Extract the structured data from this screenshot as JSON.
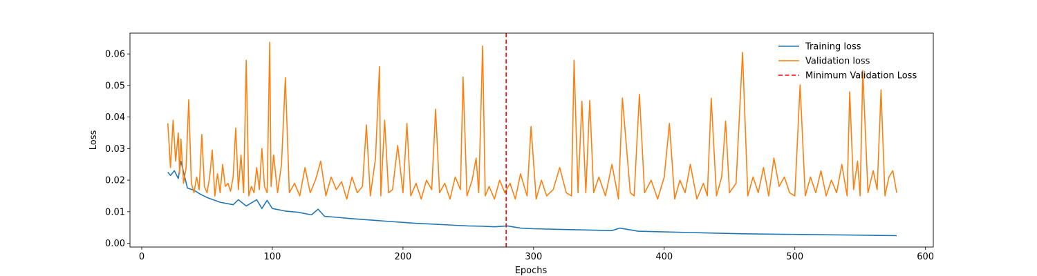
{
  "chart_data": {
    "type": "line",
    "title": "",
    "xlabel": "Epochs",
    "ylabel": "Loss",
    "xlim": [
      -9,
      606
    ],
    "ylim": [
      -0.0012,
      0.0666
    ],
    "xticks": [
      0,
      100,
      200,
      300,
      400,
      500,
      600
    ],
    "xtick_labels": [
      "0",
      "100",
      "200",
      "300",
      "400",
      "500",
      "600"
    ],
    "yticks": [
      0.0,
      0.01,
      0.02,
      0.03,
      0.04,
      0.05,
      0.06
    ],
    "ytick_labels": [
      "0.00",
      "0.01",
      "0.02",
      "0.03",
      "0.04",
      "0.05",
      "0.06"
    ],
    "grid": false,
    "legend_position": "upper right",
    "series": [
      {
        "name": "Training loss",
        "color": "#1f77b4",
        "x": [
          20,
          22,
          25,
          28,
          30,
          35,
          40,
          45,
          50,
          60,
          70,
          74,
          80,
          88,
          92,
          96,
          100,
          110,
          120,
          130,
          135,
          140,
          150,
          160,
          170,
          180,
          190,
          200,
          210,
          220,
          230,
          240,
          250,
          260,
          270,
          280,
          290,
          300,
          320,
          340,
          360,
          366,
          380,
          400,
          420,
          440,
          460,
          480,
          500,
          520,
          540,
          560,
          578
        ],
        "y": [
          0.0225,
          0.0215,
          0.023,
          0.0205,
          0.026,
          0.0175,
          0.0168,
          0.0155,
          0.0145,
          0.013,
          0.0122,
          0.0138,
          0.0118,
          0.0138,
          0.011,
          0.0136,
          0.011,
          0.0102,
          0.0098,
          0.009,
          0.0108,
          0.0085,
          0.0082,
          0.0078,
          0.0075,
          0.0072,
          0.0069,
          0.0066,
          0.0063,
          0.0061,
          0.0059,
          0.0057,
          0.0055,
          0.0054,
          0.0052,
          0.0055,
          0.0048,
          0.0046,
          0.0044,
          0.0042,
          0.004,
          0.0048,
          0.0038,
          0.0036,
          0.0034,
          0.0032,
          0.003,
          0.0029,
          0.0028,
          0.0027,
          0.0026,
          0.0025,
          0.0024
        ]
      },
      {
        "name": "Validation loss",
        "color": "#ff7f0e",
        "x": [
          20,
          22,
          24,
          26,
          28,
          29,
          30,
          32,
          34,
          36,
          38,
          40,
          42,
          44,
          46,
          48,
          50,
          52,
          54,
          56,
          58,
          60,
          62,
          64,
          66,
          68,
          70,
          72,
          74,
          76,
          78,
          80,
          82,
          84,
          86,
          88,
          90,
          92,
          94,
          96,
          98,
          99,
          101,
          104,
          107,
          110,
          113,
          117,
          121,
          125,
          129,
          133,
          137,
          141,
          145,
          149,
          153,
          157,
          161,
          165,
          169,
          172,
          175,
          179,
          182,
          183,
          186,
          189,
          192,
          196,
          200,
          203,
          206,
          210,
          214,
          218,
          222,
          225,
          228,
          232,
          236,
          240,
          244,
          246,
          249,
          253,
          256,
          258,
          261,
          263,
          266,
          270,
          274,
          278,
          282,
          286,
          290,
          295,
          298,
          302,
          306,
          310,
          315,
          320,
          325,
          329,
          331,
          334,
          337,
          340,
          343,
          346,
          350,
          355,
          360,
          365,
          368,
          371,
          374,
          377,
          381,
          385,
          390,
          395,
          400,
          404,
          408,
          412,
          416,
          420,
          425,
          430,
          433,
          436,
          440,
          444,
          447,
          450,
          455,
          460,
          464,
          468,
          472,
          476,
          480,
          484,
          488,
          492,
          496,
          500,
          504,
          508,
          512,
          516,
          520,
          524,
          528,
          532,
          536,
          540,
          542,
          545,
          548,
          550,
          552,
          556,
          560,
          563,
          566,
          569,
          572,
          575,
          578
        ],
        "y": [
          0.038,
          0.024,
          0.039,
          0.026,
          0.035,
          0.022,
          0.033,
          0.019,
          0.024,
          0.0455,
          0.019,
          0.016,
          0.021,
          0.017,
          0.0345,
          0.018,
          0.016,
          0.021,
          0.0295,
          0.015,
          0.022,
          0.016,
          0.025,
          0.018,
          0.019,
          0.0165,
          0.021,
          0.0365,
          0.017,
          0.028,
          0.016,
          0.058,
          0.015,
          0.018,
          0.016,
          0.024,
          0.017,
          0.03,
          0.018,
          0.016,
          0.0637,
          0.018,
          0.028,
          0.016,
          0.025,
          0.0525,
          0.016,
          0.019,
          0.015,
          0.024,
          0.016,
          0.02,
          0.026,
          0.015,
          0.021,
          0.017,
          0.0195,
          0.014,
          0.021,
          0.016,
          0.018,
          0.0375,
          0.015,
          0.027,
          0.056,
          0.015,
          0.039,
          0.016,
          0.017,
          0.031,
          0.016,
          0.038,
          0.015,
          0.019,
          0.014,
          0.02,
          0.017,
          0.0425,
          0.016,
          0.019,
          0.014,
          0.021,
          0.017,
          0.0527,
          0.015,
          0.02,
          0.027,
          0.016,
          0.0625,
          0.015,
          0.018,
          0.014,
          0.02,
          0.016,
          0.019,
          0.014,
          0.022,
          0.015,
          0.037,
          0.014,
          0.02,
          0.015,
          0.017,
          0.024,
          0.016,
          0.015,
          0.058,
          0.016,
          0.045,
          0.016,
          0.0453,
          0.016,
          0.021,
          0.015,
          0.025,
          0.014,
          0.046,
          0.031,
          0.016,
          0.015,
          0.0472,
          0.016,
          0.02,
          0.014,
          0.021,
          0.038,
          0.014,
          0.02,
          0.016,
          0.025,
          0.014,
          0.019,
          0.015,
          0.046,
          0.015,
          0.021,
          0.0387,
          0.016,
          0.019,
          0.0605,
          0.015,
          0.021,
          0.016,
          0.024,
          0.015,
          0.027,
          0.018,
          0.021,
          0.016,
          0.015,
          0.0502,
          0.015,
          0.021,
          0.016,
          0.023,
          0.015,
          0.02,
          0.016,
          0.025,
          0.015,
          0.048,
          0.017,
          0.026,
          0.015,
          0.0548,
          0.016,
          0.023,
          0.017,
          0.0486,
          0.015,
          0.021,
          0.023,
          0.016
        ]
      },
      {
        "name": "Minimum Validation Loss",
        "color": "#ff0000",
        "style": "dashed",
        "orientation": "vertical",
        "x": 279
      }
    ]
  }
}
